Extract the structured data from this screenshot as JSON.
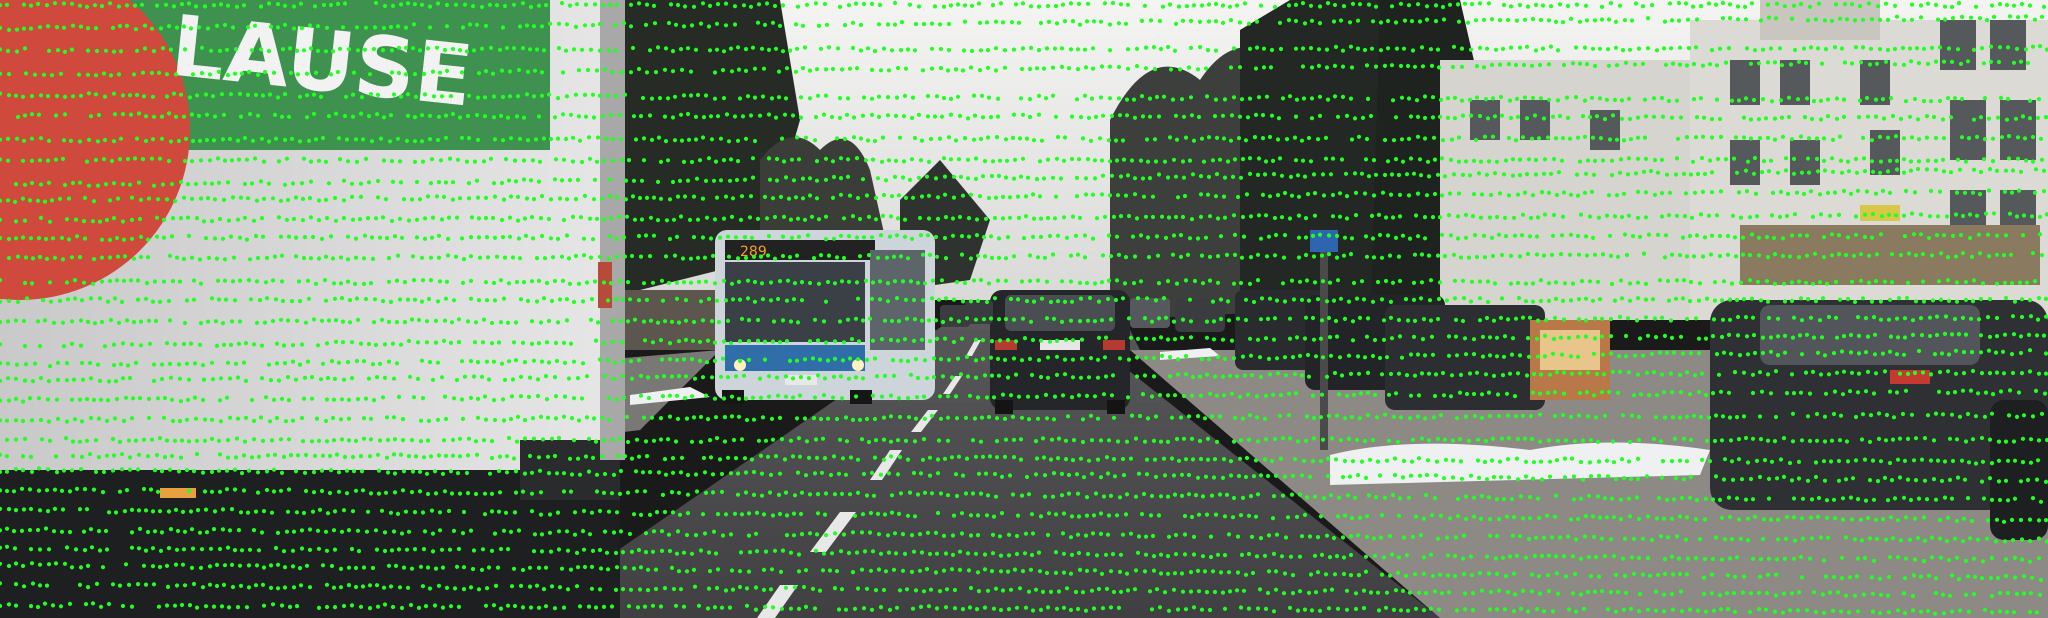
{
  "image": {
    "description_tag": "street-camera-frame-with-lidar-projection",
    "colors": {
      "sky": "#eeeeec",
      "road": "#4b4b4d",
      "sidewalk": "#8c8986",
      "truck_body": "#dcdcdc",
      "truck_sign_green": "#3a8f4c",
      "truck_sign_red": "#d0483a",
      "bus": "#cfd6dc",
      "suv": "#2a2a2d",
      "tree": "#2a2f2a",
      "building": "#d8d6d2",
      "snow": "#f0f2f4",
      "lidar_point": "#22ff22"
    },
    "visible_text": {
      "truck_lettering": "LAUSE",
      "bus_destination": "289"
    }
  }
}
